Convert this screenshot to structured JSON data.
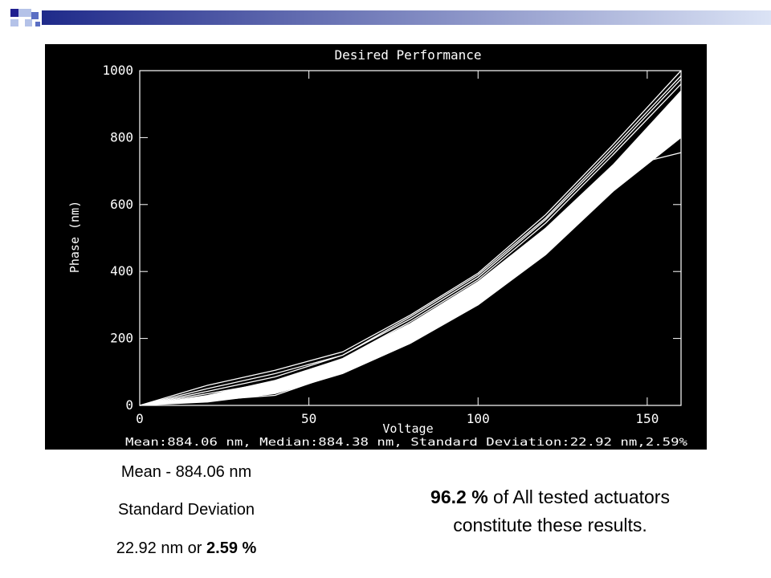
{
  "slide": {
    "accent_dark": "#1f1f8f",
    "accent_mid": "#5b6fc4",
    "accent_light": "#b4c2e8",
    "bar_start": "#1f2a8a",
    "bar_end": "#dbe3f5"
  },
  "chart_data": {
    "type": "line",
    "title": "Desired Performance",
    "xlabel": "Voltage",
    "ylabel": "Phase (nm)",
    "xlim": [
      0,
      160
    ],
    "ylim": [
      0,
      1000
    ],
    "x_ticks": [
      "0",
      "50",
      "100",
      "150"
    ],
    "y_ticks": [
      "0",
      "200",
      "400",
      "600",
      "800",
      "1000"
    ],
    "grid": false,
    "background": "#000000",
    "foreground": "#ffffff",
    "stats_caption": "Mean:884.06 nm, Median:884.38 nm, Standard Deviation:22.92 nm,2.59%",
    "band": {
      "x": [
        0,
        20,
        40,
        60,
        80,
        100,
        120,
        140,
        160
      ],
      "lower": [
        0,
        10,
        35,
        95,
        185,
        300,
        450,
        640,
        800
      ],
      "upper": [
        0,
        30,
        75,
        140,
        245,
        370,
        530,
        720,
        940
      ]
    },
    "series": [
      {
        "x": [
          0,
          20,
          40,
          60,
          80,
          100,
          120,
          140,
          160
        ],
        "y": [
          0,
          60,
          105,
          160,
          270,
          395,
          570,
          780,
          1000
        ]
      },
      {
        "x": [
          0,
          20,
          40,
          60,
          80,
          100,
          120,
          140,
          160
        ],
        "y": [
          0,
          50,
          95,
          150,
          265,
          390,
          560,
          770,
          985
        ]
      },
      {
        "x": [
          0,
          20,
          40,
          60,
          80,
          100,
          120,
          140,
          160
        ],
        "y": [
          0,
          42,
          85,
          150,
          258,
          383,
          555,
          760,
          975
        ]
      },
      {
        "x": [
          0,
          20,
          40,
          60,
          80,
          100,
          120,
          140,
          160
        ],
        "y": [
          0,
          35,
          70,
          140,
          250,
          375,
          545,
          750,
          960
        ]
      },
      {
        "x": [
          0,
          20,
          40,
          60,
          80,
          100,
          120,
          140,
          160
        ],
        "y": [
          0,
          25,
          50,
          110,
          200,
          315,
          470,
          660,
          820
        ]
      },
      {
        "x": [
          0,
          20,
          40,
          60,
          80,
          100,
          120,
          140,
          150,
          160
        ],
        "y": [
          0,
          15,
          30,
          100,
          190,
          305,
          455,
          655,
          730,
          755
        ]
      }
    ]
  },
  "notes": {
    "mean": "Mean - 884.06 nm",
    "std_label": "Standard Deviation",
    "std_value_prefix": "22.92 nm or ",
    "std_value_bold": "2.59 %",
    "result_bold": "96.2 %",
    "result_rest": " of All tested actuators constitute these results."
  }
}
